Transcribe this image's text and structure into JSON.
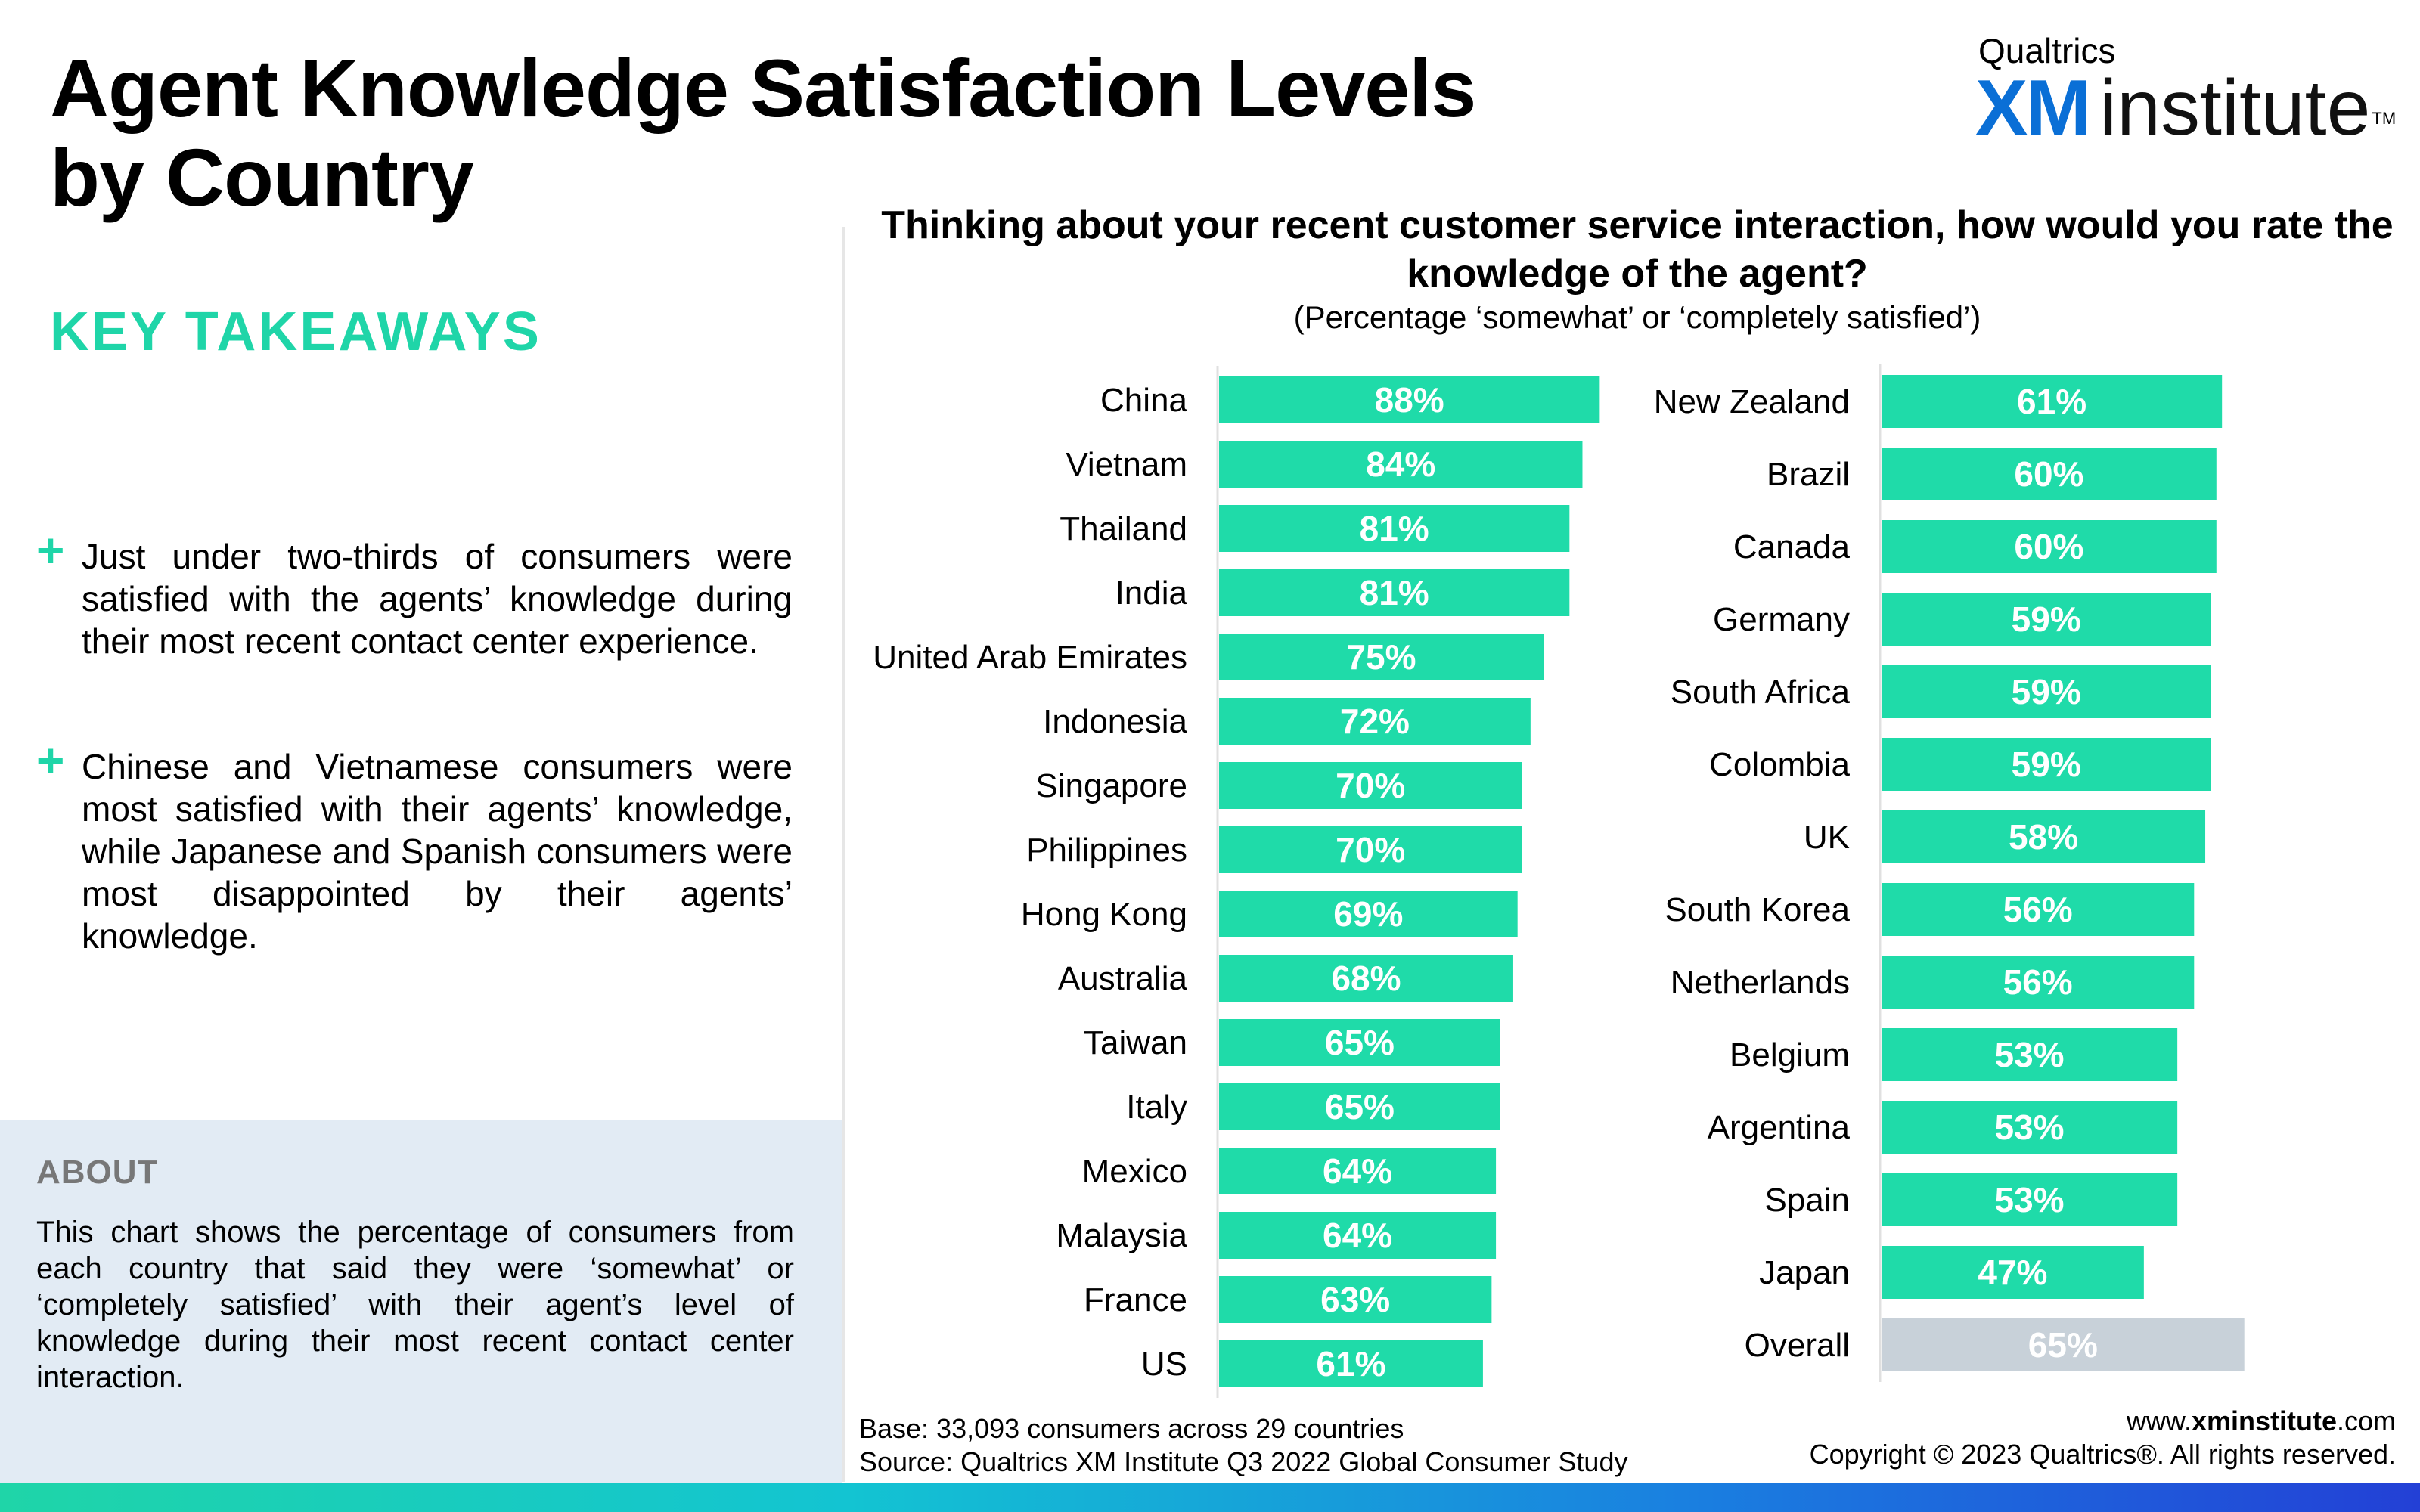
{
  "page": {
    "title": "Agent Knowledge Satisfaction Levels by Country",
    "logo": {
      "top": "Qualtrics",
      "xm": "XM",
      "institute": "institute",
      "tm": "TM"
    },
    "takeaways": {
      "heading": "KEY TAKEAWAYS",
      "points": [
        "Just under two-thirds of consumers were satisfied with the agents’ knowledge during their most recent contact center experience.",
        "Chinese and Vietnamese consumers were most satisfied with their agents’ knowledge, while Japanese and Spanish consumers were most disappointed by their agents’ knowledge."
      ]
    },
    "about": {
      "heading": "ABOUT",
      "body": "This chart shows the percentage of consumers from each country that said they were ‘somewhat’ or ‘completely satisfied’ with their agent’s level of knowledge during their most recent contact center interaction."
    },
    "footer": {
      "base": "Base: 33,093 consumers across 29 countries",
      "source": "Source: Qualtrics XM Institute Q3 2022 Global Consumer Study",
      "website_prefix": "www.",
      "website_bold": "xminstitute",
      "website_suffix": ".com",
      "copyright": "Copyright © 2023 Qualtrics®. All rights reserved."
    }
  },
  "chart_data": {
    "type": "bar",
    "orientation": "horizontal",
    "title": "Thinking about your recent customer service interaction, how would you rate the knowledge of the agent?",
    "subtitle": "(Percentage ‘somewhat’ or ‘completely satisfied’)",
    "value_suffix": "%",
    "colors": {
      "bar": "#1fdba9",
      "overall": "#c8d1d9",
      "label": "#ffffff"
    },
    "panels": [
      {
        "categories": [
          "China",
          "Vietnam",
          "Thailand",
          "India",
          "United Arab Emirates",
          "Indonesia",
          "Singapore",
          "Philippines",
          "Hong Kong",
          "Australia",
          "Taiwan",
          "Italy",
          "Mexico",
          "Malaysia",
          "France",
          "US"
        ],
        "values": [
          88,
          84,
          81,
          81,
          75,
          72,
          70,
          70,
          69,
          68,
          65,
          65,
          64,
          64,
          63,
          61
        ]
      },
      {
        "categories": [
          "New Zealand",
          "Brazil",
          "Canada",
          "Germany",
          "South Africa",
          "Colombia",
          "UK",
          "South Korea",
          "Netherlands",
          "Belgium",
          "Argentina",
          "Spain",
          "Japan",
          "Overall"
        ],
        "values": [
          61,
          60,
          60,
          59,
          59,
          59,
          58,
          56,
          56,
          53,
          53,
          53,
          47,
          65
        ],
        "highlight": "Overall"
      }
    ]
  }
}
